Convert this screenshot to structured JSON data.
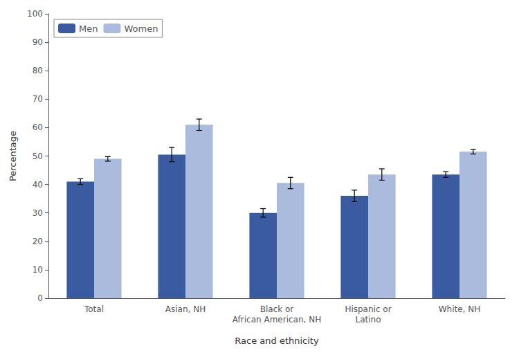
{
  "chart_data": {
    "type": "bar",
    "xlabel": "Race and ethnicity",
    "ylabel": "Percentage",
    "categories": [
      "Total",
      "Asian, NH",
      "Black or\nAfrican American, NH",
      "Hispanic or\nLatino",
      "White, NH"
    ],
    "series": [
      {
        "name": "Men",
        "color": "#3A5BA0",
        "values": [
          41.0,
          50.5,
          30.0,
          36.0,
          43.5
        ],
        "errors": [
          1.0,
          2.5,
          1.5,
          2.0,
          1.0
        ]
      },
      {
        "name": "Women",
        "color": "#AABBDD",
        "values": [
          49.0,
          61.0,
          40.5,
          43.5,
          51.5
        ],
        "errors": [
          0.8,
          2.0,
          2.0,
          2.0,
          0.8
        ]
      }
    ],
    "ylim": [
      0,
      100
    ],
    "yticks": [
      0,
      10,
      20,
      30,
      40,
      50,
      60,
      70,
      80,
      90,
      100
    ],
    "grid": false,
    "legend": "upper left"
  }
}
